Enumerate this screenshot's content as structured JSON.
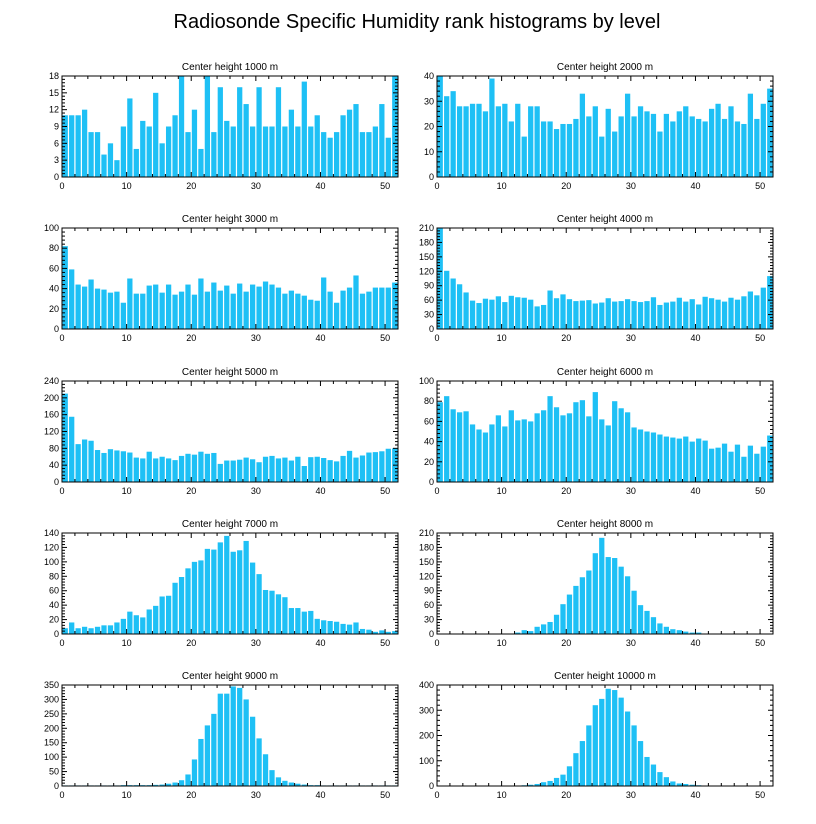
{
  "figure": {
    "title": "Radiosonde Specific Humidity rank histograms by level",
    "bar_color": "#1ec0f5",
    "axis_color": "#000000"
  },
  "chart_data": [
    {
      "type": "bar",
      "title": "Center height 1000 m",
      "xlabel": "",
      "ylabel": "",
      "xlim": [
        0,
        52
      ],
      "xticks": [
        0,
        10,
        20,
        30,
        40,
        50
      ],
      "ylim": [
        0,
        18
      ],
      "yticks": [
        0,
        3,
        6,
        9,
        12,
        15,
        18
      ],
      "x_start": 0,
      "values": [
        11,
        11,
        11,
        12,
        8,
        8,
        4,
        6,
        3,
        9,
        14,
        5,
        10,
        9,
        15,
        6,
        9,
        11,
        18,
        8,
        12,
        5,
        18,
        8,
        16,
        10,
        9,
        16,
        13,
        9,
        16,
        9,
        9,
        16,
        9,
        12,
        9,
        17,
        9,
        11,
        8,
        7,
        8,
        11,
        12,
        13,
        8,
        8,
        9,
        13,
        7,
        18
      ]
    },
    {
      "type": "bar",
      "title": "Center height 2000 m",
      "xlabel": "",
      "ylabel": "",
      "xlim": [
        0,
        52
      ],
      "xticks": [
        0,
        10,
        20,
        30,
        40,
        50
      ],
      "ylim": [
        0,
        40
      ],
      "yticks": [
        0,
        10,
        20,
        30,
        40
      ],
      "x_start": 0,
      "values": [
        40,
        32,
        34,
        28,
        28,
        29,
        29,
        26,
        39,
        28,
        29,
        22,
        29,
        16,
        28,
        28,
        22,
        22,
        19,
        21,
        21,
        23,
        33,
        24,
        28,
        16,
        27,
        18,
        24,
        33,
        24,
        28,
        26,
        25,
        18,
        25,
        22,
        26,
        28,
        24,
        23,
        22,
        27,
        29,
        23,
        28,
        22,
        21,
        33,
        23,
        29,
        35
      ]
    },
    {
      "type": "bar",
      "title": "Center height 3000 m",
      "xlabel": "",
      "ylabel": "",
      "xlim": [
        0,
        52
      ],
      "xticks": [
        0,
        10,
        20,
        30,
        40,
        50
      ],
      "ylim": [
        0,
        100
      ],
      "yticks": [
        0,
        20,
        40,
        60,
        80,
        100
      ],
      "x_start": 0,
      "values": [
        82,
        59,
        44,
        42,
        49,
        40,
        39,
        36,
        37,
        26,
        50,
        35,
        35,
        43,
        44,
        36,
        44,
        34,
        37,
        44,
        34,
        50,
        37,
        46,
        38,
        43,
        35,
        45,
        37,
        44,
        42,
        47,
        44,
        41,
        35,
        38,
        35,
        33,
        29,
        28,
        51,
        37,
        26,
        38,
        41,
        53,
        35,
        37,
        41,
        41,
        41,
        46
      ]
    },
    {
      "type": "bar",
      "title": "Center height 4000 m",
      "xlabel": "",
      "ylabel": "",
      "xlim": [
        0,
        52
      ],
      "xticks": [
        0,
        10,
        20,
        30,
        40,
        50
      ],
      "ylim": [
        0,
        210
      ],
      "yticks": [
        0,
        30,
        60,
        90,
        120,
        150,
        180,
        210
      ],
      "x_start": 0,
      "values": [
        210,
        121,
        105,
        93,
        76,
        59,
        54,
        63,
        61,
        68,
        56,
        69,
        66,
        65,
        61,
        47,
        50,
        80,
        64,
        72,
        62,
        58,
        59,
        60,
        53,
        55,
        64,
        57,
        58,
        62,
        58,
        56,
        58,
        66,
        50,
        55,
        57,
        65,
        57,
        62,
        51,
        67,
        64,
        61,
        57,
        65,
        61,
        68,
        78,
        70,
        86,
        110
      ]
    },
    {
      "type": "bar",
      "title": "Center height 5000 m",
      "xlabel": "",
      "ylabel": "",
      "xlim": [
        0,
        52
      ],
      "xticks": [
        0,
        10,
        20,
        30,
        40,
        50
      ],
      "ylim": [
        0,
        240
      ],
      "yticks": [
        0,
        40,
        80,
        120,
        160,
        200,
        240
      ],
      "x_start": 0,
      "values": [
        210,
        155,
        90,
        101,
        98,
        76,
        69,
        78,
        75,
        73,
        70,
        58,
        56,
        72,
        56,
        60,
        56,
        52,
        62,
        67,
        65,
        72,
        67,
        69,
        43,
        51,
        51,
        53,
        58,
        54,
        47,
        60,
        62,
        56,
        58,
        51,
        60,
        38,
        59,
        60,
        57,
        52,
        49,
        62,
        74,
        58,
        63,
        70,
        71,
        73,
        79,
        80
      ]
    },
    {
      "type": "bar",
      "title": "Center height 6000 m",
      "xlabel": "",
      "ylabel": "",
      "xlim": [
        0,
        52
      ],
      "xticks": [
        0,
        10,
        20,
        30,
        40,
        50
      ],
      "ylim": [
        0,
        100
      ],
      "yticks": [
        0,
        20,
        40,
        60,
        80,
        100
      ],
      "x_start": 0,
      "values": [
        79,
        85,
        72,
        69,
        70,
        57,
        52,
        49,
        57,
        66,
        55,
        71,
        61,
        62,
        60,
        68,
        71,
        85,
        74,
        66,
        68,
        79,
        81,
        65,
        89,
        62,
        56,
        80,
        73,
        69,
        54,
        52,
        50,
        49,
        47,
        45,
        44,
        43,
        45,
        40,
        43,
        41,
        33,
        34,
        38,
        30,
        37,
        25,
        36,
        28,
        35,
        46
      ]
    },
    {
      "type": "bar",
      "title": "Center height 7000 m",
      "xlabel": "",
      "ylabel": "",
      "xlim": [
        0,
        52
      ],
      "xticks": [
        0,
        10,
        20,
        30,
        40,
        50
      ],
      "ylim": [
        0,
        140
      ],
      "yticks": [
        0,
        20,
        40,
        60,
        80,
        100,
        120,
        140
      ],
      "x_start": 0,
      "values": [
        8,
        16,
        8,
        10,
        8,
        10,
        12,
        12,
        16,
        21,
        31,
        26,
        23,
        34,
        39,
        52,
        53,
        71,
        79,
        91,
        100,
        102,
        118,
        117,
        127,
        136,
        114,
        116,
        129,
        99,
        83,
        61,
        60,
        55,
        51,
        36,
        36,
        31,
        32,
        21,
        19,
        18,
        17,
        14,
        13,
        16,
        7,
        6,
        3,
        5,
        3,
        4
      ]
    },
    {
      "type": "bar",
      "title": "Center height 8000 m",
      "xlabel": "",
      "ylabel": "",
      "xlim": [
        0,
        52
      ],
      "xticks": [
        0,
        10,
        20,
        30,
        40,
        50
      ],
      "ylim": [
        0,
        210
      ],
      "yticks": [
        0,
        30,
        60,
        90,
        120,
        150,
        180,
        210
      ],
      "x_start": 0,
      "values": [
        0,
        0,
        0,
        0,
        0,
        0,
        0,
        0,
        0,
        0,
        0,
        0,
        3,
        8,
        6,
        15,
        20,
        25,
        40,
        62,
        82,
        100,
        118,
        132,
        168,
        200,
        160,
        158,
        140,
        120,
        90,
        60,
        48,
        35,
        22,
        15,
        10,
        8,
        5,
        3,
        3,
        1,
        0,
        0,
        0,
        0,
        0,
        0,
        0,
        0,
        0,
        0
      ]
    },
    {
      "type": "bar",
      "title": "Center height 9000 m",
      "xlabel": "",
      "ylabel": "",
      "xlim": [
        0,
        52
      ],
      "xticks": [
        0,
        10,
        20,
        30,
        40,
        50
      ],
      "ylim": [
        0,
        350
      ],
      "yticks": [
        0,
        50,
        100,
        150,
        200,
        250,
        300,
        350
      ],
      "x_start": 0,
      "values": [
        2,
        2,
        2,
        2,
        2,
        2,
        2,
        2,
        2,
        3,
        3,
        3,
        3,
        3,
        4,
        5,
        8,
        12,
        20,
        40,
        92,
        163,
        210,
        250,
        320,
        320,
        345,
        340,
        300,
        240,
        165,
        110,
        55,
        30,
        18,
        12,
        8,
        5,
        3,
        3,
        2,
        2,
        2,
        2,
        2,
        2,
        2,
        2,
        2,
        2,
        2,
        2
      ]
    },
    {
      "type": "bar",
      "title": "Center height 10000 m",
      "xlabel": "",
      "ylabel": "",
      "xlim": [
        0,
        52
      ],
      "xticks": [
        0,
        10,
        20,
        30,
        40,
        50
      ],
      "ylim": [
        0,
        400
      ],
      "yticks": [
        0,
        100,
        200,
        300,
        400
      ],
      "x_start": 0,
      "values": [
        0,
        0,
        0,
        0,
        0,
        0,
        0,
        0,
        0,
        0,
        0,
        0,
        2,
        3,
        5,
        8,
        15,
        20,
        32,
        45,
        78,
        130,
        178,
        240,
        320,
        345,
        385,
        380,
        350,
        295,
        240,
        178,
        115,
        85,
        55,
        35,
        18,
        10,
        8,
        5,
        3,
        2,
        1,
        0,
        0,
        0,
        0,
        0,
        0,
        0,
        0,
        0
      ]
    }
  ]
}
